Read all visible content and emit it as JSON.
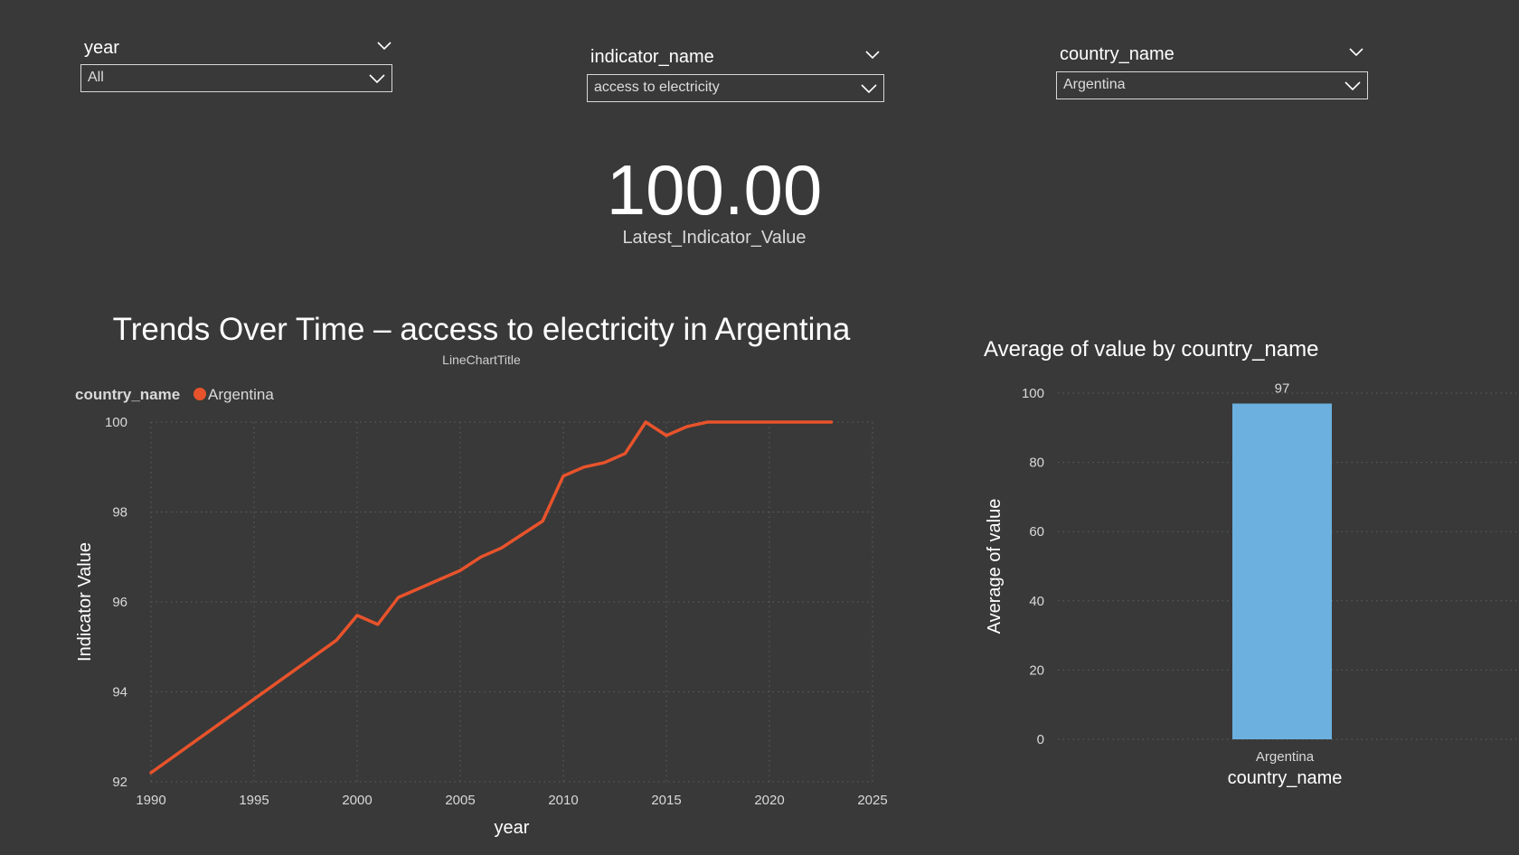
{
  "filters": {
    "year": {
      "title": "year",
      "value": "All"
    },
    "indicator": {
      "title": "indicator_name",
      "value": "access to electricity"
    },
    "country": {
      "title": "country_name",
      "value": "Argentina"
    }
  },
  "kpi": {
    "value": "100.00",
    "label": "Latest_Indicator_Value"
  },
  "line_chart": {
    "title": "Trends Over Time – access to electricity in Argentina",
    "subtitle": "LineChartTitle",
    "legend_title": "country_name",
    "legend_item": "Argentina"
  },
  "bar_chart": {
    "title": "Average of value by country_name"
  },
  "colors": {
    "background": "#393939",
    "line": "#e8532b",
    "bar": "#6cb0df",
    "grid": "#5e5e5e"
  },
  "chart_data": [
    {
      "type": "line",
      "title": "Trends Over Time – access to electricity in Argentina",
      "xlabel": "year",
      "ylabel": "Indicator Value",
      "xlim": [
        1990,
        2025
      ],
      "ylim": [
        92,
        100
      ],
      "xticks": [
        1990,
        1995,
        2000,
        2005,
        2010,
        2015,
        2020,
        2025
      ],
      "yticks": [
        92,
        94,
        96,
        98,
        100
      ],
      "grid": true,
      "legend": "top-left",
      "series": [
        {
          "name": "Argentina",
          "x": [
            1990,
            1999,
            2000,
            2001,
            2002,
            2003,
            2004,
            2005,
            2006,
            2007,
            2008,
            2009,
            2010,
            2011,
            2012,
            2013,
            2014,
            2015,
            2016,
            2017,
            2018,
            2019,
            2020,
            2021,
            2022,
            2023
          ],
          "y": [
            92.2,
            95.15,
            95.7,
            95.5,
            96.1,
            96.3,
            96.5,
            96.7,
            97.0,
            97.2,
            97.5,
            97.8,
            98.8,
            99.0,
            99.1,
            99.3,
            100.0,
            99.7,
            99.9,
            100.0,
            100.0,
            100.0,
            100.0,
            100.0,
            100.0,
            100.0
          ]
        }
      ]
    },
    {
      "type": "bar",
      "title": "Average of value by country_name",
      "xlabel": "country_name",
      "ylabel": "Average of value",
      "categories": [
        "Argentina"
      ],
      "values": [
        97
      ],
      "data_labels": [
        "97"
      ],
      "ylim": [
        0,
        100
      ],
      "yticks": [
        0,
        20,
        40,
        60,
        80,
        100
      ],
      "grid": true
    }
  ]
}
